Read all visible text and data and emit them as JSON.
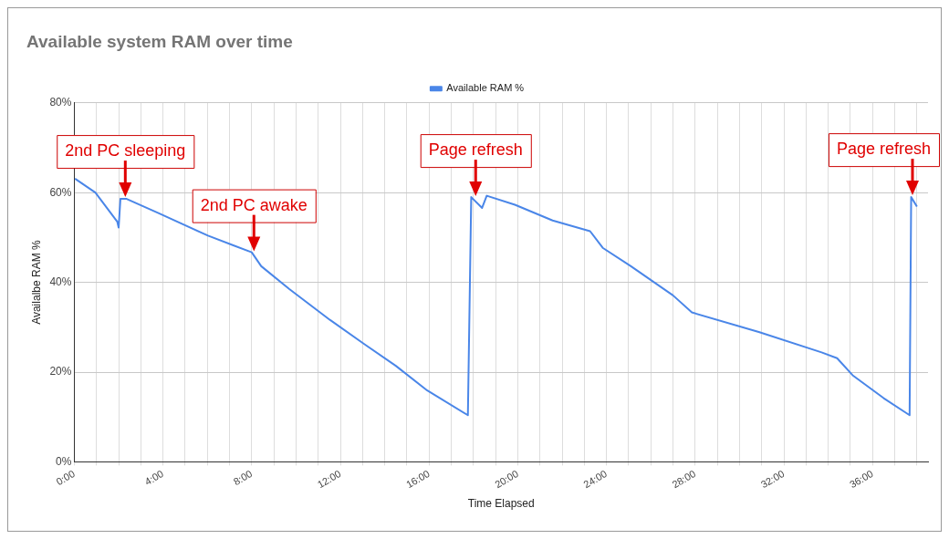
{
  "chart_data": {
    "type": "line",
    "title": "Available system RAM over time",
    "xlabel": "Time Elapsed",
    "ylabel": "Availalbe RAM %",
    "x": [
      0.03,
      0.95,
      1.94,
      2.0,
      2.08,
      2.36,
      3.77,
      6.03,
      8.0,
      8.43,
      9.7,
      11.54,
      13.09,
      14.5,
      15.92,
      17.75,
      17.9,
      18.39,
      18.6,
      19.87,
      21.57,
      23.26,
      23.83,
      25.1,
      27.0,
      27.85,
      30.9,
      33.7,
      34.4,
      35.1,
      36.5,
      37.67,
      37.74,
      38.0
    ],
    "series": [
      {
        "name": "Available RAM %",
        "color": "#4a86e8",
        "values": [
          63.1,
          60,
          53.5,
          52.2,
          58.6,
          58.6,
          55.5,
          50.4,
          46.7,
          43.6,
          38.5,
          31.6,
          26.2,
          21.4,
          15.9,
          10.4,
          59.0,
          56.6,
          59.3,
          57.3,
          53.8,
          51.4,
          47.7,
          43.6,
          37.1,
          33.3,
          28.9,
          24.4,
          23.1,
          19.3,
          14.2,
          10.4,
          59.0,
          56.9
        ]
      }
    ],
    "xlim": [
      0,
      38.5
    ],
    "ylim": [
      0,
      80
    ],
    "xticks": [
      {
        "value": 0,
        "label": "0:00"
      },
      {
        "value": 1,
        "label": null
      },
      {
        "value": 2,
        "label": null
      },
      {
        "value": 3,
        "label": null
      },
      {
        "value": 4,
        "label": "4:00"
      },
      {
        "value": 5,
        "label": null
      },
      {
        "value": 6,
        "label": null
      },
      {
        "value": 7,
        "label": null
      },
      {
        "value": 8,
        "label": "8:00"
      },
      {
        "value": 9,
        "label": null
      },
      {
        "value": 10,
        "label": null
      },
      {
        "value": 11,
        "label": null
      },
      {
        "value": 12,
        "label": "12:00"
      },
      {
        "value": 13,
        "label": null
      },
      {
        "value": 14,
        "label": null
      },
      {
        "value": 15,
        "label": null
      },
      {
        "value": 16,
        "label": "16:00"
      },
      {
        "value": 17,
        "label": null
      },
      {
        "value": 18,
        "label": null
      },
      {
        "value": 19,
        "label": null
      },
      {
        "value": 20,
        "label": "20:00"
      },
      {
        "value": 21,
        "label": null
      },
      {
        "value": 22,
        "label": null
      },
      {
        "value": 23,
        "label": null
      },
      {
        "value": 24,
        "label": "24:00"
      },
      {
        "value": 25,
        "label": null
      },
      {
        "value": 26,
        "label": null
      },
      {
        "value": 27,
        "label": null
      },
      {
        "value": 28,
        "label": "28:00"
      },
      {
        "value": 29,
        "label": null
      },
      {
        "value": 30,
        "label": null
      },
      {
        "value": 31,
        "label": null
      },
      {
        "value": 32,
        "label": "32:00"
      },
      {
        "value": 33,
        "label": null
      },
      {
        "value": 34,
        "label": null
      },
      {
        "value": 35,
        "label": null
      },
      {
        "value": 36,
        "label": "36:00"
      },
      {
        "value": 37,
        "label": null
      },
      {
        "value": 38,
        "label": null
      }
    ],
    "yticks": [
      {
        "value": 0,
        "label": "0%"
      },
      {
        "value": 20,
        "label": "20%"
      },
      {
        "value": 40,
        "label": "40%"
      },
      {
        "value": 60,
        "label": "60%"
      },
      {
        "value": 80,
        "label": "80%"
      }
    ],
    "grid": true,
    "legend": "top",
    "marker": "none",
    "line_style": "solid",
    "annotations": [
      {
        "text": "2nd PC sleeping",
        "x": 2.3,
        "y": 58.6
      },
      {
        "text": "2nd PC awake",
        "x": 8.1,
        "y": 46.5
      },
      {
        "text": "Page refresh",
        "x": 18.1,
        "y": 58.8
      },
      {
        "text": "Page refresh",
        "x": 37.8,
        "y": 59.0
      }
    ]
  }
}
